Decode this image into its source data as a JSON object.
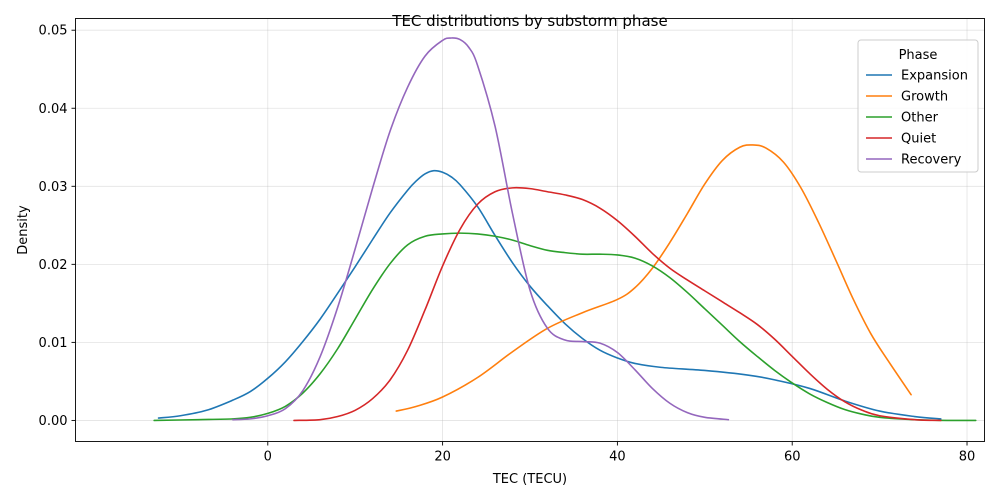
{
  "chart_data": {
    "type": "line",
    "title": "TEC distributions by substorm phase",
    "xlabel": "TEC (TECU)",
    "ylabel": "Density",
    "xlim": [
      -22,
      82
    ],
    "ylim": [
      -0.0027,
      0.0515
    ],
    "xticks": [
      0,
      20,
      40,
      60,
      80
    ],
    "xtick_labels": [
      "0",
      "20",
      "40",
      "60",
      "80"
    ],
    "yticks": [
      0.0,
      0.01,
      0.02,
      0.03,
      0.04,
      0.05
    ],
    "ytick_labels": [
      "0.00",
      "0.01",
      "0.02",
      "0.03",
      "0.04",
      "0.05"
    ],
    "grid": true,
    "legend": {
      "title": "Phase",
      "position": "top-right"
    },
    "series": [
      {
        "name": "Expansion",
        "color": "#1f77b4",
        "points": [
          [
            -12.5,
            0.0003
          ],
          [
            -10,
            0.0006
          ],
          [
            -7,
            0.0013
          ],
          [
            -4,
            0.0026
          ],
          [
            -2,
            0.0037
          ],
          [
            0,
            0.0054
          ],
          [
            2,
            0.0075
          ],
          [
            4,
            0.0101
          ],
          [
            6,
            0.013
          ],
          [
            8,
            0.0163
          ],
          [
            10,
            0.0197
          ],
          [
            12,
            0.0232
          ],
          [
            14,
            0.0266
          ],
          [
            16,
            0.0295
          ],
          [
            17,
            0.0307
          ],
          [
            18,
            0.0316
          ],
          [
            19,
            0.032
          ],
          [
            20,
            0.0318
          ],
          [
            21,
            0.0312
          ],
          [
            22,
            0.0302
          ],
          [
            24,
            0.0274
          ],
          [
            26,
            0.0237
          ],
          [
            28,
            0.0202
          ],
          [
            30,
            0.0172
          ],
          [
            32,
            0.0147
          ],
          [
            34,
            0.0124
          ],
          [
            36,
            0.0105
          ],
          [
            38,
            0.009
          ],
          [
            40,
            0.008
          ],
          [
            42,
            0.0073
          ],
          [
            45,
            0.0068
          ],
          [
            50,
            0.0064
          ],
          [
            55,
            0.0058
          ],
          [
            58,
            0.0052
          ],
          [
            62,
            0.0041
          ],
          [
            66,
            0.0025
          ],
          [
            70,
            0.0012
          ],
          [
            74,
            0.0005
          ],
          [
            77,
            0.0002
          ]
        ]
      },
      {
        "name": "Growth",
        "color": "#ff7f0e",
        "points": [
          [
            14.7,
            0.0012
          ],
          [
            17,
            0.0018
          ],
          [
            20,
            0.003
          ],
          [
            24,
            0.0055
          ],
          [
            28,
            0.0088
          ],
          [
            32,
            0.0118
          ],
          [
            36,
            0.0138
          ],
          [
            40,
            0.0155
          ],
          [
            42,
            0.017
          ],
          [
            44,
            0.0195
          ],
          [
            46,
            0.0228
          ],
          [
            48,
            0.0265
          ],
          [
            50,
            0.0303
          ],
          [
            52,
            0.0333
          ],
          [
            54,
            0.035
          ],
          [
            55.5,
            0.0353
          ],
          [
            57,
            0.0349
          ],
          [
            59,
            0.0331
          ],
          [
            61,
            0.0298
          ],
          [
            63,
            0.0254
          ],
          [
            65,
            0.0205
          ],
          [
            67,
            0.0155
          ],
          [
            69,
            0.0111
          ],
          [
            71,
            0.0076
          ],
          [
            73.6,
            0.0033
          ]
        ]
      },
      {
        "name": "Other",
        "color": "#2ca02c",
        "points": [
          [
            -13,
            0.0
          ],
          [
            -8,
            0.0001
          ],
          [
            -4,
            0.0002
          ],
          [
            -2,
            0.0004
          ],
          [
            0,
            0.0009
          ],
          [
            2,
            0.0018
          ],
          [
            4,
            0.0035
          ],
          [
            6,
            0.006
          ],
          [
            8,
            0.0092
          ],
          [
            10,
            0.013
          ],
          [
            12,
            0.0168
          ],
          [
            14,
            0.0201
          ],
          [
            16,
            0.0225
          ],
          [
            18,
            0.0236
          ],
          [
            20,
            0.0239
          ],
          [
            22,
            0.024
          ],
          [
            24,
            0.0239
          ],
          [
            26,
            0.0236
          ],
          [
            28,
            0.0231
          ],
          [
            30,
            0.0224
          ],
          [
            32,
            0.0218
          ],
          [
            34,
            0.0215
          ],
          [
            36,
            0.0213
          ],
          [
            38,
            0.0213
          ],
          [
            40,
            0.0212
          ],
          [
            42,
            0.0208
          ],
          [
            44,
            0.0198
          ],
          [
            46,
            0.0183
          ],
          [
            48,
            0.0164
          ],
          [
            50,
            0.0143
          ],
          [
            52,
            0.0122
          ],
          [
            54,
            0.0101
          ],
          [
            56,
            0.0082
          ],
          [
            58,
            0.0064
          ],
          [
            60,
            0.0048
          ],
          [
            62,
            0.0034
          ],
          [
            64,
            0.0023
          ],
          [
            66,
            0.0014
          ],
          [
            68,
            0.0008
          ],
          [
            70,
            0.0004
          ],
          [
            74,
            0.0001
          ],
          [
            78,
            0.0
          ],
          [
            81,
            0.0
          ]
        ]
      },
      {
        "name": "Quiet",
        "color": "#d62728",
        "points": [
          [
            3,
            0.0
          ],
          [
            6,
            0.0001
          ],
          [
            8,
            0.0005
          ],
          [
            10,
            0.0013
          ],
          [
            12,
            0.0028
          ],
          [
            14,
            0.0052
          ],
          [
            16,
            0.009
          ],
          [
            18,
            0.0142
          ],
          [
            20,
            0.0198
          ],
          [
            22,
            0.0245
          ],
          [
            24,
            0.0277
          ],
          [
            26,
            0.0293
          ],
          [
            28,
            0.0298
          ],
          [
            30,
            0.0297
          ],
          [
            32,
            0.0293
          ],
          [
            34,
            0.0289
          ],
          [
            36,
            0.0283
          ],
          [
            38,
            0.0272
          ],
          [
            40,
            0.0256
          ],
          [
            42,
            0.0236
          ],
          [
            44,
            0.0214
          ],
          [
            46,
            0.0195
          ],
          [
            48,
            0.018
          ],
          [
            50,
            0.0166
          ],
          [
            52,
            0.0152
          ],
          [
            54,
            0.0138
          ],
          [
            56,
            0.0123
          ],
          [
            58,
            0.0104
          ],
          [
            60,
            0.0082
          ],
          [
            62,
            0.006
          ],
          [
            64,
            0.004
          ],
          [
            66,
            0.0024
          ],
          [
            68,
            0.0013
          ],
          [
            70,
            0.0006
          ],
          [
            74,
            0.0001
          ],
          [
            77,
            0.0
          ]
        ]
      },
      {
        "name": "Recovery",
        "color": "#9467bd",
        "points": [
          [
            -4,
            0.0001
          ],
          [
            -2,
            0.0002
          ],
          [
            0,
            0.0006
          ],
          [
            2,
            0.0015
          ],
          [
            4,
            0.0038
          ],
          [
            6,
            0.0082
          ],
          [
            8,
            0.0145
          ],
          [
            10,
            0.022
          ],
          [
            12,
            0.0298
          ],
          [
            14,
            0.0371
          ],
          [
            16,
            0.0427
          ],
          [
            18,
            0.0467
          ],
          [
            20,
            0.0487
          ],
          [
            21,
            0.049
          ],
          [
            22,
            0.0488
          ],
          [
            23,
            0.0478
          ],
          [
            24,
            0.0455
          ],
          [
            26,
            0.0377
          ],
          [
            28,
            0.0265
          ],
          [
            30,
            0.0167
          ],
          [
            32,
            0.0118
          ],
          [
            34,
            0.0103
          ],
          [
            36,
            0.0101
          ],
          [
            38,
            0.0099
          ],
          [
            40,
            0.0087
          ],
          [
            42,
            0.0065
          ],
          [
            44,
            0.0041
          ],
          [
            46,
            0.0022
          ],
          [
            48,
            0.001
          ],
          [
            50,
            0.0004
          ],
          [
            52.7,
            0.0001
          ]
        ]
      }
    ]
  }
}
